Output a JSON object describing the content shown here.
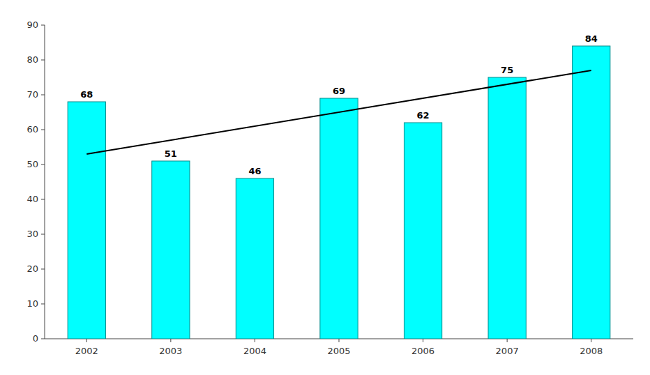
{
  "chart_data": {
    "type": "bar",
    "categories": [
      "2002",
      "2003",
      "2004",
      "2005",
      "2006",
      "2007",
      "2008"
    ],
    "values": [
      68,
      51,
      46,
      69,
      62,
      75,
      84
    ],
    "color": "#00FFFF",
    "data_labels": true,
    "trendline": {
      "values": [
        53.0,
        77.0
      ],
      "color": "#000000"
    },
    "ylim": [
      0,
      90
    ],
    "yticks": [
      0,
      10,
      20,
      30,
      40,
      50,
      60,
      70,
      80,
      90
    ],
    "grid": false
  }
}
